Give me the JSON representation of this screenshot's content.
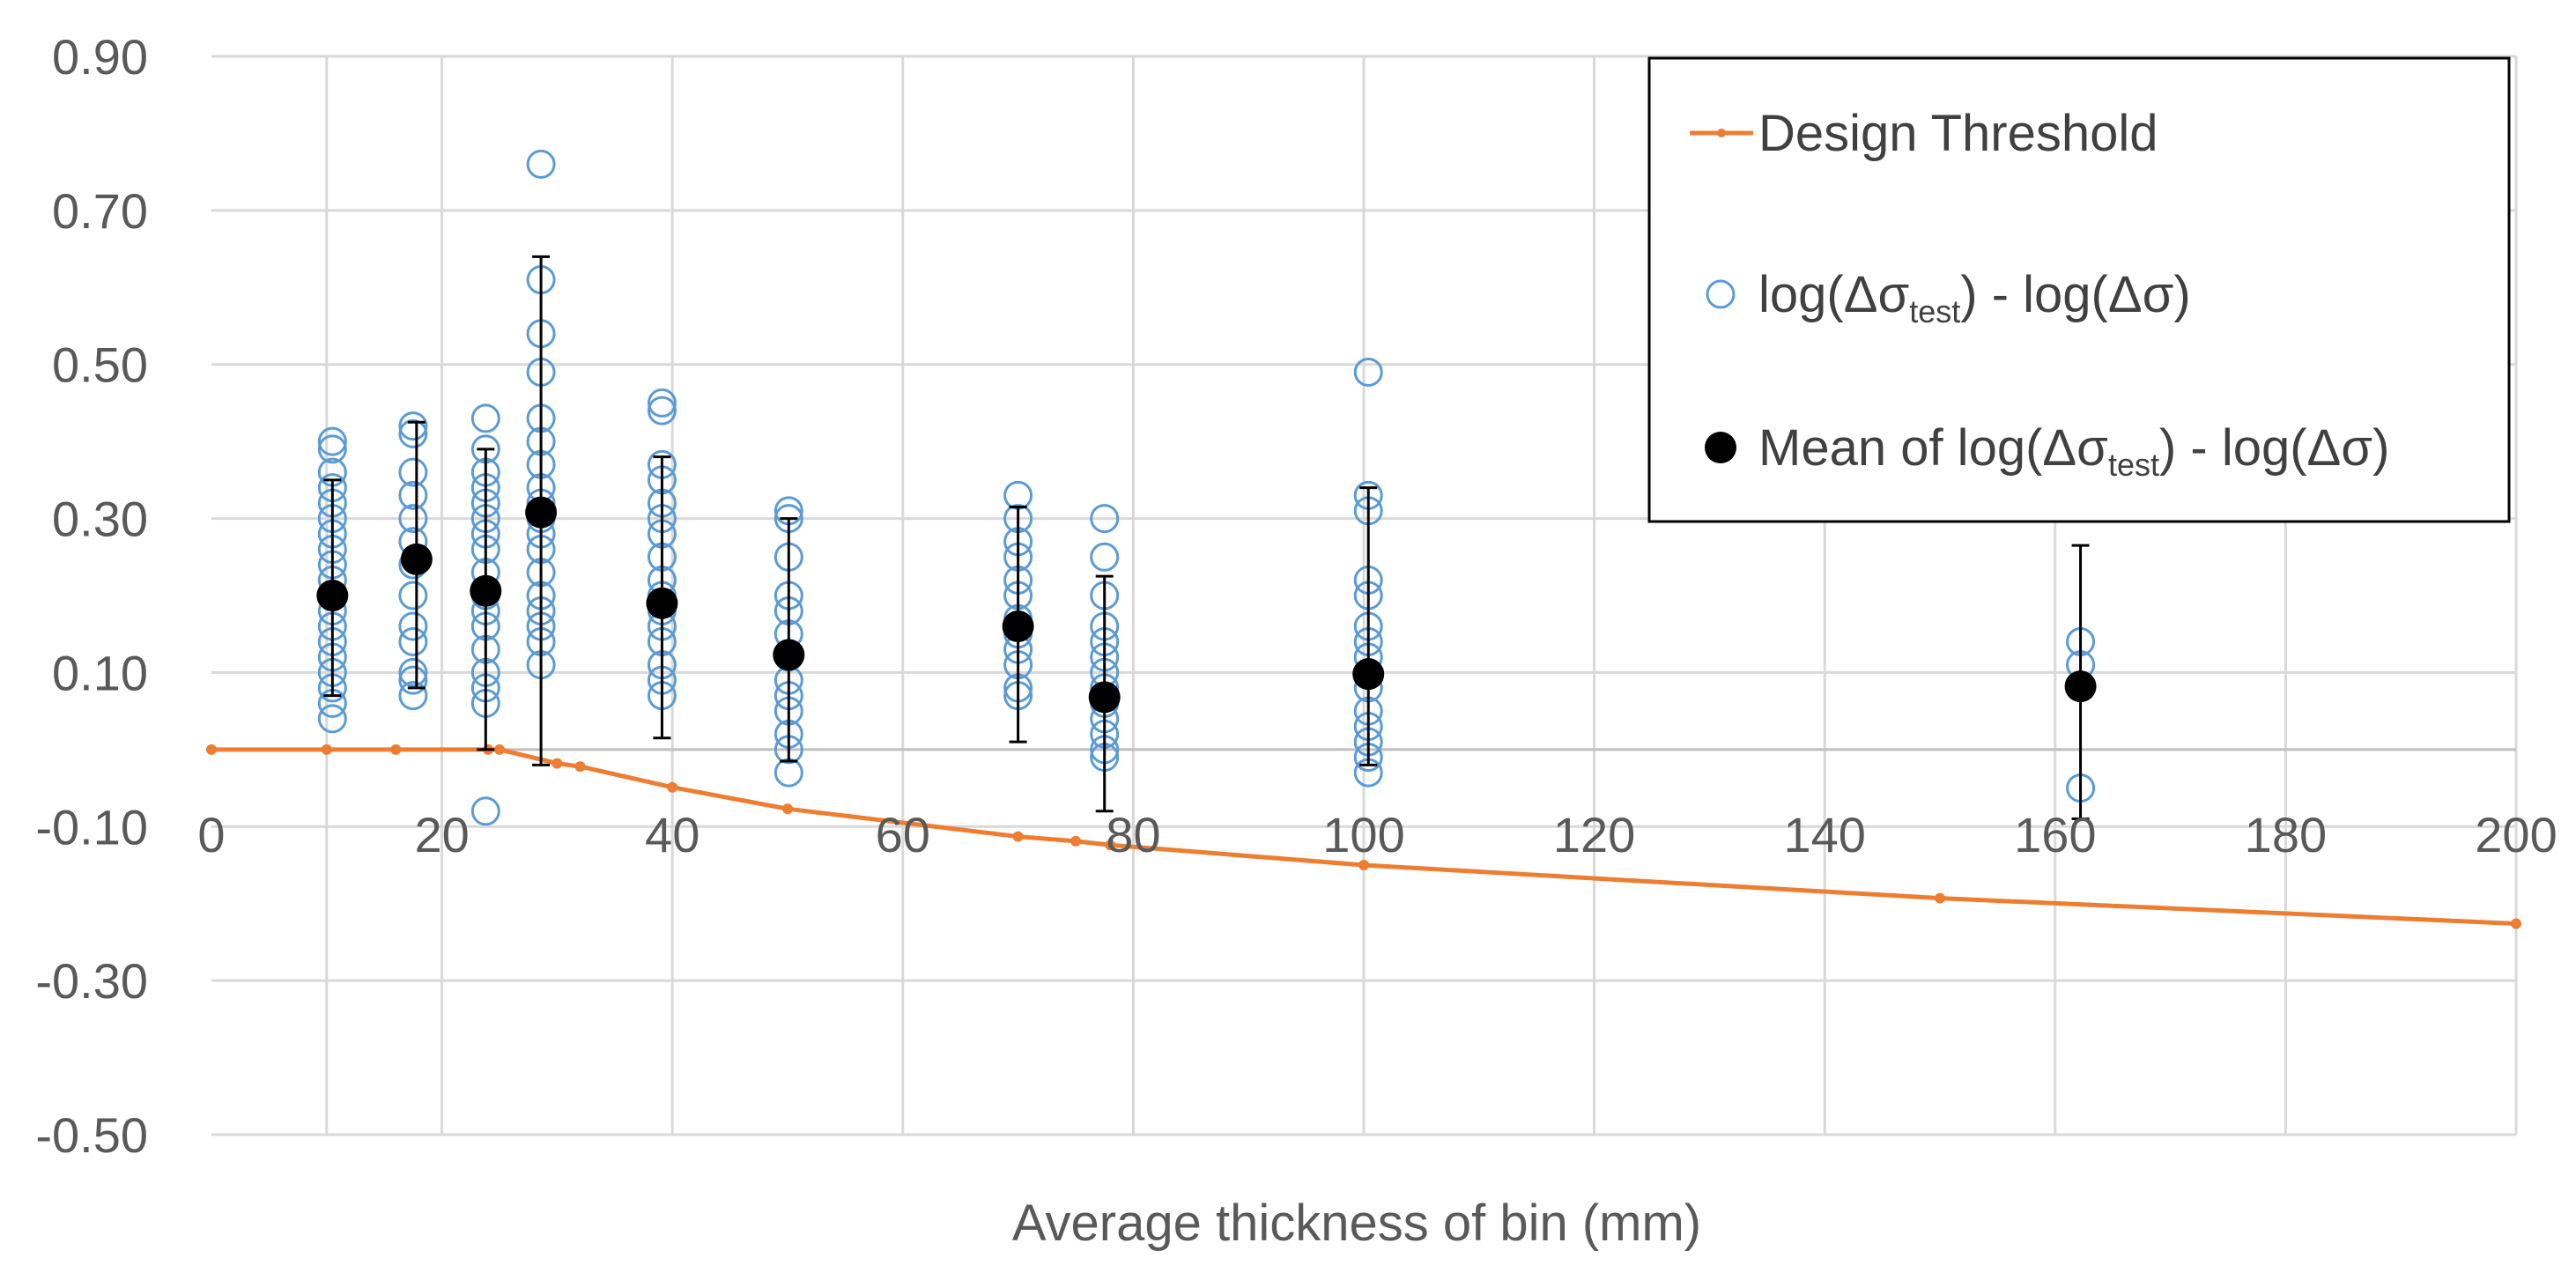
{
  "chart_data": {
    "type": "scatter",
    "title": "",
    "xlabel": "Average thickness of bin (mm)",
    "ylabel": "",
    "xlim": [
      0,
      200
    ],
    "ylim": [
      -0.5,
      0.9
    ],
    "x_ticks": [
      "0",
      "20",
      "40",
      "60",
      "80",
      "100",
      "120",
      "140",
      "160",
      "180",
      "200"
    ],
    "y_ticks": [
      "0.90",
      "0.70",
      "0.50",
      "0.30",
      "0.10",
      "-0.10",
      "-0.30",
      "-0.50"
    ],
    "grid": true,
    "legend_position": "top-right",
    "legend": {
      "threshold": "Design Threshold",
      "points_pre": "log(Δσ",
      "points_sub": "test",
      "points_post": ") - log(Δσ)",
      "mean_pre": "Mean of log(Δσ",
      "mean_sub": "test",
      "mean_post": ") - log(Δσ)"
    },
    "colors": {
      "threshold": "#ED7D31",
      "points": "#5B9BD5",
      "mean": "#000000",
      "grid": "#D9D9D9"
    },
    "series": [
      {
        "name": "Design Threshold",
        "kind": "line",
        "x": [
          0,
          10,
          16,
          24,
          25,
          30,
          32,
          40,
          50,
          70,
          75,
          78,
          100,
          150,
          200
        ],
        "y": [
          0.0,
          0.0,
          0.0,
          0.0,
          0.0,
          -0.018,
          -0.022,
          -0.049,
          -0.077,
          -0.113,
          -0.119,
          -0.124,
          -0.15,
          -0.193,
          -0.226
        ]
      },
      {
        "name": "log(Δσtest) - log(Δσ)",
        "kind": "scatter",
        "groups": [
          {
            "x": 10.5,
            "y": [
              0.04,
              0.06,
              0.08,
              0.1,
              0.12,
              0.14,
              0.16,
              0.18,
              0.2,
              0.22,
              0.24,
              0.26,
              0.28,
              0.3,
              0.32,
              0.34,
              0.36,
              0.39,
              0.4
            ]
          },
          {
            "x": 17.5,
            "y": [
              0.07,
              0.09,
              0.1,
              0.14,
              0.16,
              0.2,
              0.24,
              0.27,
              0.3,
              0.33,
              0.36,
              0.41,
              0.42
            ]
          },
          {
            "x": 23.8,
            "y": [
              -0.08,
              0.06,
              0.08,
              0.1,
              0.13,
              0.16,
              0.18,
              0.2,
              0.23,
              0.26,
              0.28,
              0.3,
              0.32,
              0.34,
              0.36,
              0.39,
              0.43
            ]
          },
          {
            "x": 28.6,
            "y": [
              0.11,
              0.14,
              0.16,
              0.18,
              0.2,
              0.23,
              0.26,
              0.28,
              0.3,
              0.32,
              0.34,
              0.37,
              0.4,
              0.43,
              0.49,
              0.54,
              0.61,
              0.76
            ]
          },
          {
            "x": 39.1,
            "y": [
              0.07,
              0.09,
              0.11,
              0.14,
              0.16,
              0.18,
              0.2,
              0.22,
              0.25,
              0.28,
              0.3,
              0.32,
              0.35,
              0.37,
              0.44,
              0.45
            ]
          },
          {
            "x": 50.1,
            "y": [
              -0.03,
              0.0,
              0.02,
              0.05,
              0.07,
              0.09,
              0.12,
              0.15,
              0.18,
              0.2,
              0.25,
              0.3,
              0.31
            ]
          },
          {
            "x": 70.0,
            "y": [
              0.07,
              0.08,
              0.11,
              0.13,
              0.15,
              0.17,
              0.2,
              0.22,
              0.25,
              0.27,
              0.3,
              0.33
            ]
          },
          {
            "x": 77.5,
            "y": [
              -0.01,
              0.0,
              0.02,
              0.04,
              0.06,
              0.08,
              0.1,
              0.12,
              0.14,
              0.16,
              0.2,
              0.25,
              0.3
            ]
          },
          {
            "x": 100.4,
            "y": [
              -0.03,
              -0.01,
              0.01,
              0.03,
              0.05,
              0.08,
              0.1,
              0.12,
              0.14,
              0.16,
              0.2,
              0.22,
              0.31,
              0.33,
              0.49
            ]
          },
          {
            "x": 162.2,
            "y": [
              -0.05,
              0.11,
              0.14
            ]
          }
        ]
      },
      {
        "name": "Mean of log(Δσtest) - log(Δσ)",
        "kind": "mean_errorbar",
        "points": [
          {
            "x": 10.5,
            "y": 0.2,
            "ylow": 0.07,
            "yhigh": 0.35
          },
          {
            "x": 17.8,
            "y": 0.247,
            "ylow": 0.08,
            "yhigh": 0.425
          },
          {
            "x": 23.8,
            "y": 0.206,
            "ylow": 0.0,
            "yhigh": 0.39
          },
          {
            "x": 28.6,
            "y": 0.308,
            "ylow": -0.02,
            "yhigh": 0.64
          },
          {
            "x": 39.1,
            "y": 0.19,
            "ylow": 0.015,
            "yhigh": 0.38
          },
          {
            "x": 50.1,
            "y": 0.123,
            "ylow": -0.015,
            "yhigh": 0.3
          },
          {
            "x": 70.0,
            "y": 0.16,
            "ylow": 0.01,
            "yhigh": 0.315
          },
          {
            "x": 77.5,
            "y": 0.068,
            "ylow": -0.08,
            "yhigh": 0.225
          },
          {
            "x": 100.4,
            "y": 0.098,
            "ylow": -0.02,
            "yhigh": 0.34
          },
          {
            "x": 162.2,
            "y": 0.082,
            "ylow": -0.09,
            "yhigh": 0.265
          }
        ]
      }
    ]
  }
}
